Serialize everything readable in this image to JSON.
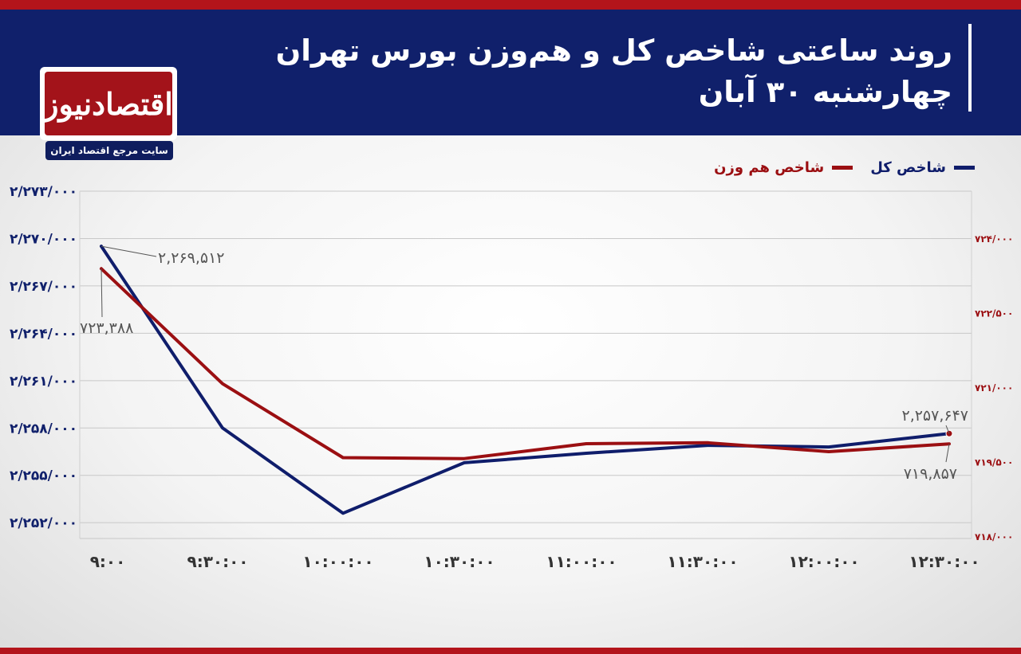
{
  "header": {
    "title_line1": "روند ساعتی شاخص کل و هم‌وزن بورس تهران",
    "title_line2": "چهارشنبه ۳۰ آبان"
  },
  "logo": {
    "name": "اقتصادنیوز",
    "tagline": "سایت مرجع اقتصاد ایران"
  },
  "colors": {
    "header_bg": "#10206b",
    "accent_red": "#b3141b",
    "series_total": "#0f1d6b",
    "series_equal": "#9b0f12"
  },
  "chart_data": {
    "type": "line",
    "categories": [
      "۹:۰۰",
      "۹:۳۰:۰۰",
      "۱۰:۰۰:۰۰",
      "۱۰:۳۰:۰۰",
      "۱۱:۰۰:۰۰",
      "۱۱:۳۰:۰۰",
      "۱۲:۰۰:۰۰",
      "۱۲:۳۰:۰۰"
    ],
    "series": [
      {
        "name": "شاخص کل",
        "axis": "left",
        "color": "#0f1d6b",
        "values": [
          2269512,
          2258000,
          2252600,
          2255800,
          2256400,
          2256900,
          2256800,
          2257647
        ]
      },
      {
        "name": "شاخص هم وزن",
        "axis": "right",
        "color": "#9b0f12",
        "values": [
          723388,
          721070,
          719580,
          719560,
          719860,
          719880,
          719700,
          719857
        ]
      }
    ],
    "left_axis": {
      "ylim": [
        2251000,
        2273000
      ],
      "ticks": [
        2252000,
        2255000,
        2258000,
        2261000,
        2264000,
        2267000,
        2270000,
        2273000
      ],
      "tick_labels": [
        "۲/۲۵۲/۰۰۰",
        "۲/۲۵۵/۰۰۰",
        "۲/۲۵۸/۰۰۰",
        "۲/۲۶۱/۰۰۰",
        "۲/۲۶۴/۰۰۰",
        "۲/۲۶۷/۰۰۰",
        "۲/۲۷۰/۰۰۰",
        "۲/۲۷۳/۰۰۰"
      ]
    },
    "right_axis": {
      "ylim": [
        717950,
        724950
      ],
      "ticks": [
        718000,
        719500,
        721000,
        722500,
        724000
      ],
      "tick_labels": [
        "۷۱۸/۰۰۰",
        "۷۱۹/۵۰۰",
        "۷۲۱/۰۰۰",
        "۷۲۲/۵۰۰",
        "۷۲۴/۰۰۰"
      ]
    },
    "annotations": [
      {
        "text": "۲,۲۶۹,۵۱۲",
        "series": 0,
        "index": 0
      },
      {
        "text": "۷۲۳,۳۸۸",
        "series": 1,
        "index": 0
      },
      {
        "text": "۲,۲۵۷,۶۴۷",
        "series": 0,
        "index": 7
      },
      {
        "text": "۷۱۹,۸۵۷",
        "series": 1,
        "index": 7
      }
    ],
    "grid": true,
    "legend_position": "top-right"
  }
}
